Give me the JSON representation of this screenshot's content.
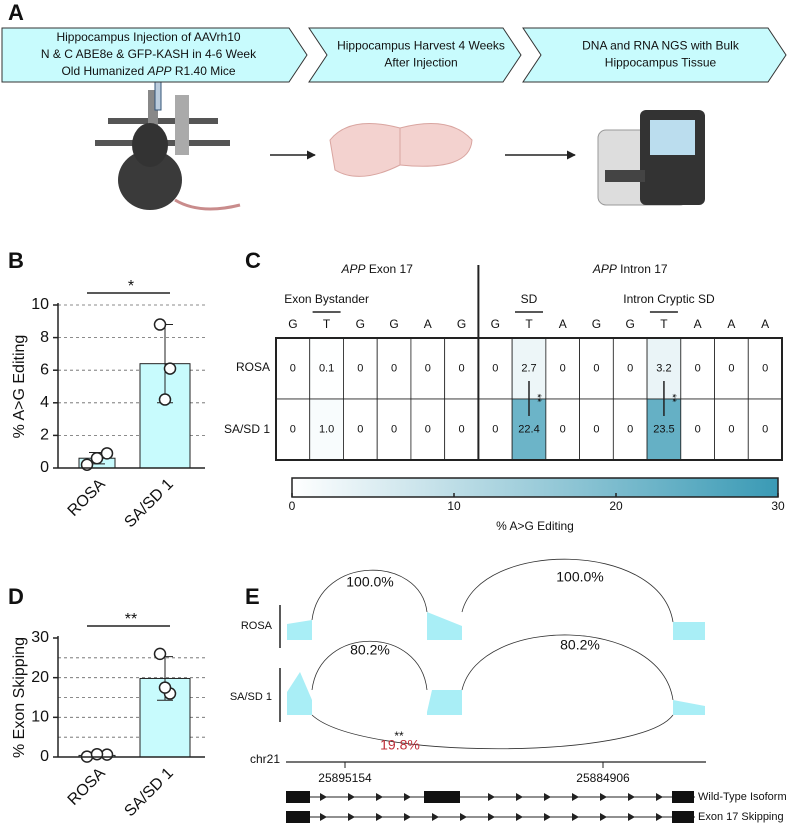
{
  "panels": [
    "A",
    "B",
    "C",
    "D",
    "E"
  ],
  "workflow": {
    "steps": [
      {
        "lines": [
          [
            "Hippocampus Injection of AAVrh10"
          ],
          [
            "N & C ABE8e & GFP-KASH in 4-6 Week"
          ],
          [
            "Old Humanized ",
            "APP",
            " R1.40 Mice"
          ]
        ]
      },
      {
        "lines": [
          [
            "Hippocampus Harvest 4 Weeks"
          ],
          [
            "After Injection"
          ]
        ]
      },
      {
        "lines": [
          [
            "DNA and RNA NGS with Bulk"
          ],
          [
            "Hippocampus Tissue"
          ]
        ]
      }
    ]
  },
  "chart_data": [
    {
      "type": "bar",
      "ylabel": "% A>G Editing",
      "categories": [
        "ROSA",
        "SA/SD 1"
      ],
      "values": [
        0.6,
        6.4
      ],
      "errors": [
        0.35,
        2.4
      ],
      "points": [
        [
          0.2,
          0.9,
          0.6
        ],
        [
          8.8,
          6.1,
          4.2
        ]
      ],
      "color": "#c8fbfd",
      "ylim": [
        0,
        10
      ],
      "yticks": [
        0,
        2,
        4,
        6,
        8,
        10
      ],
      "grid": [
        2,
        4,
        6,
        8,
        10
      ],
      "significance": "*"
    },
    {
      "type": "bar",
      "ylabel": "% Exon Skipping",
      "categories": [
        "ROSA",
        "SA/SD 1"
      ],
      "values": [
        0.4,
        19.8
      ],
      "errors": [
        0.3,
        5.5
      ],
      "points": [
        [
          0.1,
          0.6,
          0.7
        ],
        [
          26,
          16,
          17.5
        ]
      ],
      "color": "#c8fbfd",
      "ylim": [
        0,
        30
      ],
      "yticks": [
        0,
        10,
        20,
        30
      ],
      "grid": [
        5,
        10,
        15,
        20,
        25
      ],
      "significance": "**"
    }
  ],
  "heatmap": {
    "regions": [
      [
        "APP",
        " Exon 17"
      ],
      [
        "APP",
        " Intron 17"
      ]
    ],
    "sites": [
      "Exon Bystander",
      "SD",
      "Intron Cryptic SD"
    ],
    "columns": [
      "G",
      "T",
      "G",
      "G",
      "A",
      "G",
      "G",
      "T",
      "A",
      "G",
      "G",
      "T",
      "A",
      "A",
      "A"
    ],
    "rows": [
      "ROSA",
      "SA/SD 1"
    ],
    "values": [
      [
        0,
        0.1,
        0,
        0,
        0,
        0,
        0,
        2.7,
        0,
        0,
        0,
        3.2,
        0,
        0,
        0
      ],
      [
        0,
        1.0,
        0,
        0,
        0,
        0,
        0,
        22.4,
        0,
        0,
        0,
        23.5,
        0,
        0,
        0
      ]
    ],
    "value_labels": [
      [
        "0",
        "0.1",
        "0",
        "0",
        "0",
        "0",
        "0",
        "2.7",
        "0",
        "0",
        "0",
        "3.2",
        "0",
        "0",
        "0"
      ],
      [
        "0",
        "1.0",
        "0",
        "0",
        "0",
        "0",
        "0",
        "22.4",
        "0",
        "0",
        "0",
        "23.5",
        "0",
        "0",
        "0"
      ]
    ],
    "significance": [
      "**",
      "**"
    ],
    "clim": [
      0,
      30
    ],
    "cticks": [
      0,
      10,
      20,
      30
    ],
    "clabel": "% A>G Editing",
    "color": "#3a9ab5"
  },
  "sashimi": {
    "rows": [
      "ROSA",
      "SA/SD 1"
    ],
    "junctions": [
      "100.0%",
      "100.0%",
      "80.2%",
      "80.2%",
      "19.8%"
    ],
    "significance": "**",
    "chromosome": "chr21",
    "coordinates": [
      "25895154",
      "25884906"
    ],
    "isoforms": [
      "Wild-Type Isoform",
      "Exon 17 Skipping"
    ]
  }
}
